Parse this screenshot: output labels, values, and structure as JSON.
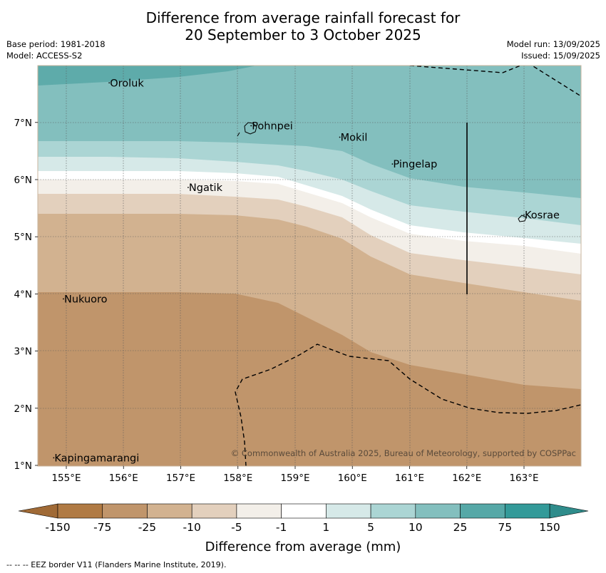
{
  "title": {
    "line1": "Difference from average rainfall forecast for",
    "line2": "20 September to 3 October 2025"
  },
  "meta": {
    "base_period": "Base period: 1981-2018",
    "model": "Model: ACCESS-S2",
    "model_run": "Model run: 13/09/2025",
    "issued": "Issued: 15/09/2025"
  },
  "map": {
    "lon_range": [
      154.5,
      164.0
    ],
    "lat_range": [
      1.0,
      8.0
    ],
    "lon_ticks": [
      "155°E",
      "156°E",
      "157°E",
      "158°E",
      "159°E",
      "160°E",
      "161°E",
      "162°E",
      "163°E"
    ],
    "lat_ticks": [
      "1°N",
      "2°N",
      "3°N",
      "4°N",
      "5°N",
      "6°N",
      "7°N"
    ],
    "places": [
      {
        "name": "Oroluk",
        "lon": 155.75,
        "lat": 7.63
      },
      {
        "name": "Pohnpei",
        "lon": 158.23,
        "lat": 6.88
      },
      {
        "name": "Mokil",
        "lon": 159.78,
        "lat": 6.68
      },
      {
        "name": "Pingelap",
        "lon": 160.7,
        "lat": 6.21
      },
      {
        "name": "Ngatik",
        "lon": 157.13,
        "lat": 5.8
      },
      {
        "name": "Kosrae",
        "lon": 163.0,
        "lat": 5.32
      },
      {
        "name": "Nukuoro",
        "lon": 154.95,
        "lat": 3.85
      },
      {
        "name": "Kapingamarangi",
        "lon": 154.78,
        "lat": 1.07
      }
    ],
    "copyright": "© Commonwealth of Australia 2025, Bureau of Meteorology, supported by COSPPac"
  },
  "colorbar": {
    "tick_labels": [
      "-150",
      "-75",
      "-25",
      "-10",
      "-5",
      "-1",
      "1",
      "5",
      "10",
      "25",
      "75",
      "150"
    ],
    "colors": [
      "#b07a44",
      "#c0956b",
      "#d2b290",
      "#e3d0bd",
      "#f3efe9",
      "#ffffff",
      "#d6e9e8",
      "#abd5d4",
      "#83bfbe",
      "#56a8a7",
      "#339a99"
    ],
    "extend_low_color": "#a06a36",
    "extend_high_color": "#2f8c8b",
    "label": "Difference from average (mm)"
  },
  "footnote": "--  --  -- EEZ border V11 (Flanders Marine Institute, 2019)."
}
